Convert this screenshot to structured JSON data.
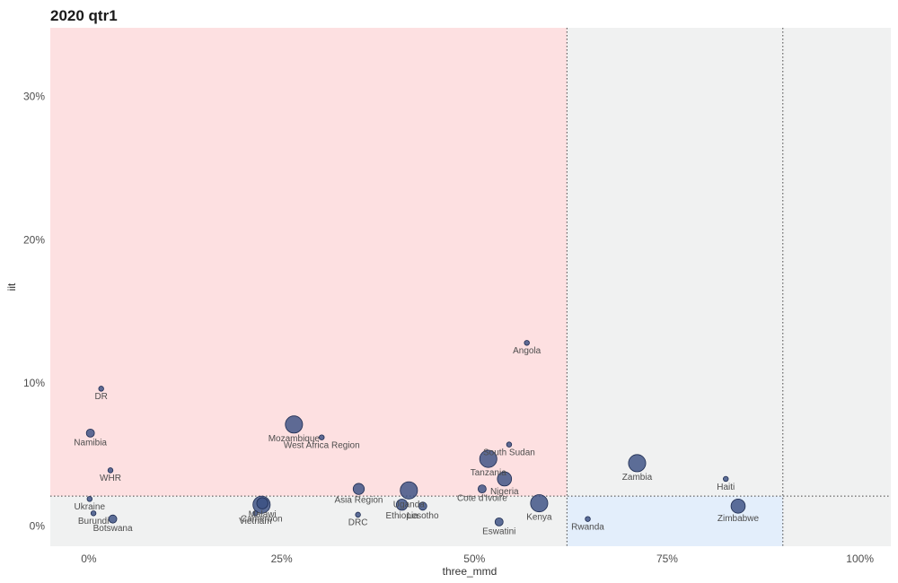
{
  "chart_data": {
    "type": "scatter",
    "title": "2020 qtr1",
    "xlabel": "three_mmd",
    "ylabel": "iit",
    "xlim": [
      -0.05,
      1.04
    ],
    "ylim": [
      -0.014,
      0.348
    ],
    "x_ticks": [
      {
        "value": 0,
        "label": "0%"
      },
      {
        "value": 0.25,
        "label": "25%"
      },
      {
        "value": 0.5,
        "label": "50%"
      },
      {
        "value": 0.75,
        "label": "75%"
      },
      {
        "value": 1.0,
        "label": "100%"
      }
    ],
    "y_ticks": [
      {
        "value": 0,
        "label": "0%"
      },
      {
        "value": 0.1,
        "label": "10%"
      },
      {
        "value": 0.2,
        "label": "20%"
      },
      {
        "value": 0.3,
        "label": "30%"
      }
    ],
    "thresholds": {
      "x": [
        0.62,
        0.9
      ],
      "y": [
        0.021
      ]
    },
    "grid": false,
    "legend": "none",
    "colors": {
      "panel": "#f0f1f1",
      "red_zone": "#fde0e1",
      "blue_zone": "#e3eefb",
      "point_fill": "#3a4f82",
      "point_stroke": "#1d2b50",
      "threshold_line": "#444444"
    },
    "points": [
      {
        "label": "DR",
        "x": 0.016,
        "y": 0.096,
        "size": 1
      },
      {
        "label": "Namibia",
        "x": 0.002,
        "y": 0.065,
        "size": 2
      },
      {
        "label": "WHR",
        "x": 0.028,
        "y": 0.039,
        "size": 1
      },
      {
        "label": "Ukraine",
        "x": 0.001,
        "y": 0.019,
        "size": 1
      },
      {
        "label": "Burundi",
        "x": 0.006,
        "y": 0.009,
        "size": 1
      },
      {
        "label": "Botswana",
        "x": 0.031,
        "y": 0.005,
        "size": 2
      },
      {
        "label": "Cameroon",
        "x": 0.224,
        "y": 0.015,
        "size": 5
      },
      {
        "label": "Malawi",
        "x": 0.225,
        "y": 0.016,
        "size": 3
      },
      {
        "label": "Vietnam",
        "x": 0.216,
        "y": 0.009,
        "size": 1
      },
      {
        "label": "Mozambique",
        "x": 0.266,
        "y": 0.071,
        "size": 5
      },
      {
        "label": "West Africa Region",
        "x": 0.302,
        "y": 0.062,
        "size": 1
      },
      {
        "label": "Asia Region",
        "x": 0.35,
        "y": 0.026,
        "size": 3
      },
      {
        "label": "DRC",
        "x": 0.349,
        "y": 0.008,
        "size": 1
      },
      {
        "label": "Uganda",
        "x": 0.415,
        "y": 0.025,
        "size": 5
      },
      {
        "label": "Ethiopia",
        "x": 0.406,
        "y": 0.015,
        "size": 3
      },
      {
        "label": "Lesotho",
        "x": 0.433,
        "y": 0.014,
        "size": 2
      },
      {
        "label": "South Sudan",
        "x": 0.545,
        "y": 0.057,
        "size": 1
      },
      {
        "label": "Tanzania",
        "x": 0.518,
        "y": 0.047,
        "size": 5
      },
      {
        "label": "Nigeria",
        "x": 0.539,
        "y": 0.033,
        "size": 4
      },
      {
        "label": "Cote d'Ivoire",
        "x": 0.51,
        "y": 0.026,
        "size": 2
      },
      {
        "label": "Kenya",
        "x": 0.584,
        "y": 0.016,
        "size": 5
      },
      {
        "label": "Eswatini",
        "x": 0.532,
        "y": 0.003,
        "size": 2
      },
      {
        "label": "Angola",
        "x": 0.568,
        "y": 0.128,
        "size": 1
      },
      {
        "label": "Rwanda",
        "x": 0.647,
        "y": 0.005,
        "size": 1
      },
      {
        "label": "Zambia",
        "x": 0.711,
        "y": 0.044,
        "size": 5
      },
      {
        "label": "Haiti",
        "x": 0.826,
        "y": 0.033,
        "size": 1
      },
      {
        "label": "Zimbabwe",
        "x": 0.842,
        "y": 0.014,
        "size": 4
      }
    ]
  }
}
